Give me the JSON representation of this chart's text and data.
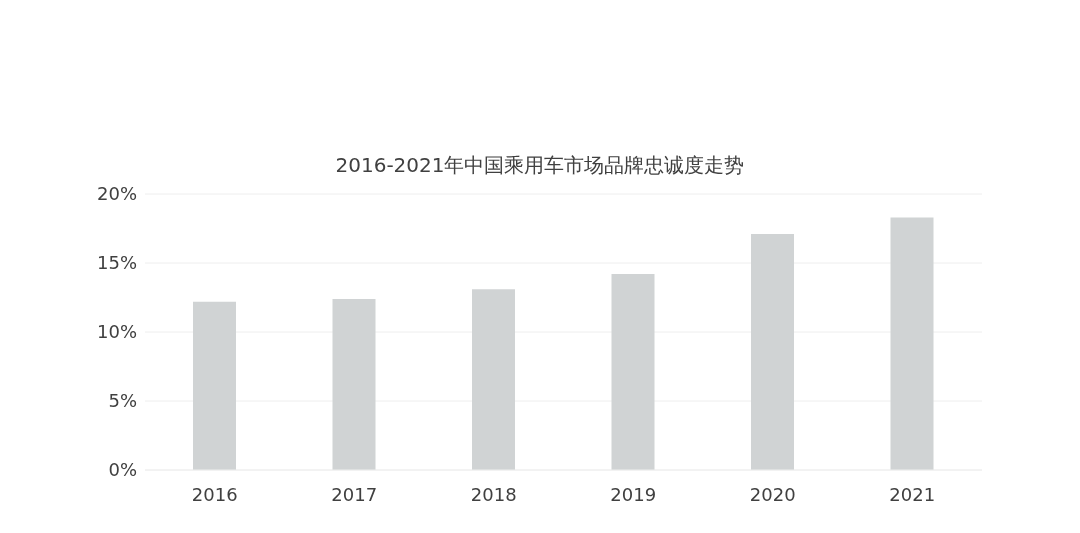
{
  "chart_data": {
    "type": "bar",
    "title": "2016-2021年中国乘用车市场品牌忠诚度走势",
    "categories": [
      "2016",
      "2017",
      "2018",
      "2019",
      "2020",
      "2021"
    ],
    "values": [
      12.2,
      12.4,
      13.1,
      14.2,
      17.1,
      18.3
    ],
    "color": "#d0d3d4",
    "ylim": [
      0,
      20
    ],
    "yticks": [
      {
        "value": 0,
        "label": "0%"
      },
      {
        "value": 5,
        "label": "5%"
      },
      {
        "value": 10,
        "label": "10%"
      },
      {
        "value": 15,
        "label": "15%"
      },
      {
        "value": 20,
        "label": "20%"
      }
    ],
    "grid": "y"
  }
}
